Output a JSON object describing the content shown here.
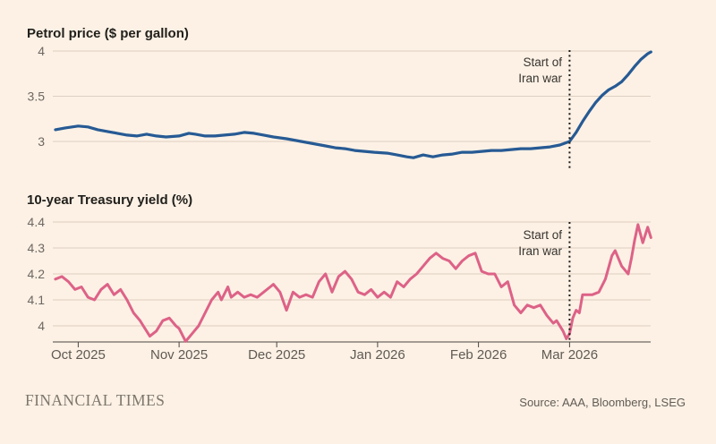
{
  "page": {
    "background": "#fdf1e5",
    "brand": "FINANCIAL TIMES",
    "source": "Source: AAA, Bloomberg, LSEG"
  },
  "chart_data": [
    {
      "type": "line",
      "title": "Petrol price ($ per gallon)",
      "x_unit": "days_since_2025-10-01",
      "xlim": [
        -7.8,
        176
      ],
      "ylim": [
        2.78,
        4.05
      ],
      "grid": true,
      "y_ticks": [
        {
          "value": 4,
          "label": "4"
        },
        {
          "value": 3.5,
          "label": "3.5"
        },
        {
          "value": 3,
          "label": "3"
        }
      ],
      "event": {
        "day": 151,
        "date": "2026-03-01",
        "label_lines": [
          "Start of",
          "Iran war"
        ]
      },
      "series": [
        {
          "name": "Petrol price",
          "color": "#265a94",
          "points": [
            [
              -7,
              3.13
            ],
            [
              -4,
              3.15
            ],
            [
              0,
              3.17
            ],
            [
              3,
              3.16
            ],
            [
              6,
              3.13
            ],
            [
              9,
              3.11
            ],
            [
              12,
              3.09
            ],
            [
              15,
              3.07
            ],
            [
              18,
              3.06
            ],
            [
              21,
              3.08
            ],
            [
              24,
              3.06
            ],
            [
              27,
              3.05
            ],
            [
              31,
              3.06
            ],
            [
              34,
              3.09
            ],
            [
              36,
              3.08
            ],
            [
              39,
              3.06
            ],
            [
              42,
              3.06
            ],
            [
              45,
              3.07
            ],
            [
              48,
              3.08
            ],
            [
              51,
              3.1
            ],
            [
              54,
              3.09
            ],
            [
              57,
              3.07
            ],
            [
              60,
              3.05
            ],
            [
              64,
              3.03
            ],
            [
              67,
              3.01
            ],
            [
              70,
              2.99
            ],
            [
              73,
              2.97
            ],
            [
              76,
              2.95
            ],
            [
              79,
              2.93
            ],
            [
              82,
              2.92
            ],
            [
              85,
              2.9
            ],
            [
              88,
              2.89
            ],
            [
              91,
              2.88
            ],
            [
              95,
              2.87
            ],
            [
              98,
              2.85
            ],
            [
              101,
              2.83
            ],
            [
              103,
              2.82
            ],
            [
              106,
              2.85
            ],
            [
              109,
              2.83
            ],
            [
              112,
              2.85
            ],
            [
              115,
              2.86
            ],
            [
              118,
              2.88
            ],
            [
              121,
              2.88
            ],
            [
              124,
              2.89
            ],
            [
              127,
              2.9
            ],
            [
              130,
              2.9
            ],
            [
              133,
              2.91
            ],
            [
              136,
              2.92
            ],
            [
              139,
              2.92
            ],
            [
              142,
              2.93
            ],
            [
              145,
              2.94
            ],
            [
              148,
              2.96
            ],
            [
              151,
              3.0
            ],
            [
              153,
              3.1
            ],
            [
              155,
              3.22
            ],
            [
              157,
              3.33
            ],
            [
              159,
              3.43
            ],
            [
              161,
              3.51
            ],
            [
              163,
              3.57
            ],
            [
              165,
              3.61
            ],
            [
              167,
              3.66
            ],
            [
              169,
              3.74
            ],
            [
              171,
              3.83
            ],
            [
              173,
              3.91
            ],
            [
              175,
              3.97
            ],
            [
              176,
              3.99
            ]
          ]
        }
      ]
    },
    {
      "type": "line",
      "title": "10-year Treasury yield (%)",
      "x_unit": "days_since_2025-10-01",
      "xlim": [
        -7.8,
        176
      ],
      "ylim": [
        3.93,
        4.42
      ],
      "grid": true,
      "y_ticks": [
        {
          "value": 4.4,
          "label": "4.4"
        },
        {
          "value": 4.3,
          "label": "4.3"
        },
        {
          "value": 4.2,
          "label": "4.2"
        },
        {
          "value": 4.1,
          "label": "4.1"
        },
        {
          "value": 4,
          "label": "4"
        }
      ],
      "x_ticks": [
        {
          "day": 0,
          "label": "Oct 2025"
        },
        {
          "day": 31,
          "label": "Nov 2025"
        },
        {
          "day": 61,
          "label": "Dec 2025"
        },
        {
          "day": 92,
          "label": "Jan 2026"
        },
        {
          "day": 123,
          "label": "Feb 2026"
        },
        {
          "day": 151,
          "label": "Mar 2026"
        }
      ],
      "event": {
        "day": 151,
        "date": "2026-03-01",
        "label_lines": [
          "Start of",
          "Iran war"
        ]
      },
      "series": [
        {
          "name": "10-year Treasury yield",
          "color": "#dd6287",
          "points": [
            [
              -7,
              4.18
            ],
            [
              -5,
              4.19
            ],
            [
              -3,
              4.17
            ],
            [
              -1,
              4.14
            ],
            [
              1,
              4.15
            ],
            [
              3,
              4.11
            ],
            [
              5,
              4.1
            ],
            [
              7,
              4.14
            ],
            [
              9,
              4.16
            ],
            [
              11,
              4.12
            ],
            [
              13,
              4.14
            ],
            [
              15,
              4.1
            ],
            [
              17,
              4.05
            ],
            [
              19,
              4.02
            ],
            [
              20,
              4.0
            ],
            [
              22,
              3.96
            ],
            [
              24,
              3.98
            ],
            [
              26,
              4.02
            ],
            [
              28,
              4.03
            ],
            [
              30,
              4.0
            ],
            [
              31,
              3.99
            ],
            [
              33,
              3.94
            ],
            [
              35,
              3.97
            ],
            [
              37,
              4.0
            ],
            [
              39,
              4.05
            ],
            [
              41,
              4.1
            ],
            [
              43,
              4.13
            ],
            [
              44,
              4.1
            ],
            [
              46,
              4.15
            ],
            [
              47,
              4.11
            ],
            [
              49,
              4.13
            ],
            [
              51,
              4.11
            ],
            [
              53,
              4.12
            ],
            [
              55,
              4.11
            ],
            [
              57,
              4.13
            ],
            [
              59,
              4.15
            ],
            [
              60,
              4.16
            ],
            [
              62,
              4.13
            ],
            [
              64,
              4.06
            ],
            [
              66,
              4.13
            ],
            [
              68,
              4.11
            ],
            [
              70,
              4.12
            ],
            [
              72,
              4.11
            ],
            [
              74,
              4.17
            ],
            [
              76,
              4.2
            ],
            [
              78,
              4.13
            ],
            [
              80,
              4.19
            ],
            [
              82,
              4.21
            ],
            [
              84,
              4.18
            ],
            [
              86,
              4.13
            ],
            [
              88,
              4.12
            ],
            [
              90,
              4.14
            ],
            [
              92,
              4.11
            ],
            [
              94,
              4.13
            ],
            [
              96,
              4.11
            ],
            [
              98,
              4.17
            ],
            [
              100,
              4.15
            ],
            [
              102,
              4.18
            ],
            [
              104,
              4.2
            ],
            [
              106,
              4.23
            ],
            [
              108,
              4.26
            ],
            [
              110,
              4.28
            ],
            [
              112,
              4.26
            ],
            [
              114,
              4.25
            ],
            [
              116,
              4.22
            ],
            [
              118,
              4.25
            ],
            [
              120,
              4.27
            ],
            [
              122,
              4.28
            ],
            [
              124,
              4.21
            ],
            [
              126,
              4.2
            ],
            [
              128,
              4.2
            ],
            [
              130,
              4.15
            ],
            [
              132,
              4.17
            ],
            [
              134,
              4.08
            ],
            [
              136,
              4.05
            ],
            [
              138,
              4.08
            ],
            [
              140,
              4.07
            ],
            [
              142,
              4.08
            ],
            [
              144,
              4.04
            ],
            [
              146,
              4.01
            ],
            [
              147,
              4.02
            ],
            [
              149,
              3.98
            ],
            [
              150,
              3.95
            ],
            [
              151,
              3.97
            ],
            [
              152,
              4.03
            ],
            [
              153,
              4.06
            ],
            [
              154,
              4.05
            ],
            [
              155,
              4.12
            ],
            [
              158,
              4.12
            ],
            [
              160,
              4.13
            ],
            [
              162,
              4.18
            ],
            [
              164,
              4.27
            ],
            [
              165,
              4.29
            ],
            [
              167,
              4.23
            ],
            [
              169,
              4.2
            ],
            [
              170,
              4.26
            ],
            [
              171,
              4.33
            ],
            [
              172,
              4.39
            ],
            [
              173.5,
              4.32
            ],
            [
              175,
              4.38
            ],
            [
              176,
              4.34
            ]
          ]
        }
      ]
    }
  ]
}
